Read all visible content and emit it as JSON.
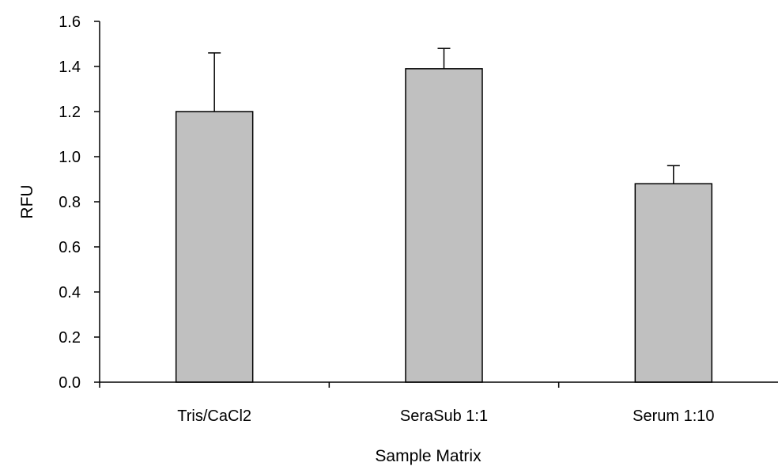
{
  "chart_data": {
    "type": "bar",
    "title": "",
    "xlabel": "Sample Matrix",
    "ylabel": "RFU",
    "categories": [
      "Tris/CaCl2",
      "SeraSub 1:1",
      "Serum 1:10"
    ],
    "values": [
      1.2,
      1.39,
      0.88
    ],
    "error_plus": [
      0.26,
      0.09,
      0.08
    ],
    "ylim": [
      0,
      1.6
    ],
    "yticks": [
      "0.0",
      "0.2",
      "0.4",
      "0.6",
      "0.8",
      "1.0",
      "1.2",
      "1.4",
      "1.6"
    ],
    "grid": false,
    "legend": "none",
    "bar_color": "#c0c0c0",
    "edge_color": "#000000"
  }
}
